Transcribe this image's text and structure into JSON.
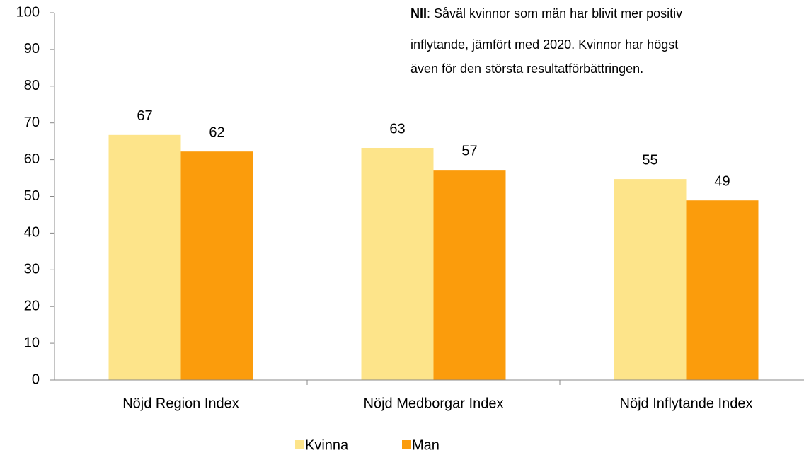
{
  "chart_data": {
    "type": "bar",
    "categories": [
      "Nöjd Region Index",
      "Nöjd Medborgar Index",
      "Nöjd Inflytande Index"
    ],
    "series": [
      {
        "name": "Kvinna",
        "color": "#fde48a",
        "values": [
          66.7,
          63.2,
          54.7
        ],
        "value_labels": [
          "67",
          "63",
          "55"
        ]
      },
      {
        "name": "Man",
        "color": "#fb9c0c",
        "values": [
          62.2,
          57.2,
          48.9
        ],
        "value_labels": [
          "62",
          "57",
          "49"
        ]
      }
    ],
    "ylim": [
      0,
      100
    ],
    "yticks": [
      0,
      10,
      20,
      30,
      40,
      50,
      60,
      70,
      80,
      90,
      100
    ],
    "annotation": {
      "bold": "NII",
      "lines": [
        ": Såväl kvinnor som män har blivit mer positiv",
        "inflytande, jämfört med 2020. Kvinnor har högst",
        "även för den största resultatförbättringen."
      ]
    },
    "legend": "bottom"
  }
}
